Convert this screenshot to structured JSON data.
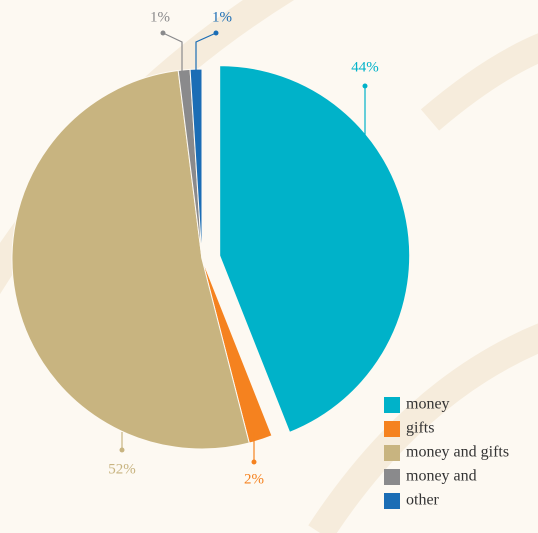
{
  "chart_data": {
    "type": "pie",
    "categories": [
      "money",
      "gifts",
      "money and gifts",
      "money and",
      "other"
    ],
    "values": [
      44,
      2,
      52,
      1,
      1
    ],
    "value_labels": [
      "44%",
      "2%",
      "52%",
      "1%",
      "1%"
    ],
    "colors": [
      "#00b2c9",
      "#f5821f",
      "#c8b480",
      "#8a8a8c",
      "#1b6db5"
    ],
    "legend": "lower right"
  }
}
